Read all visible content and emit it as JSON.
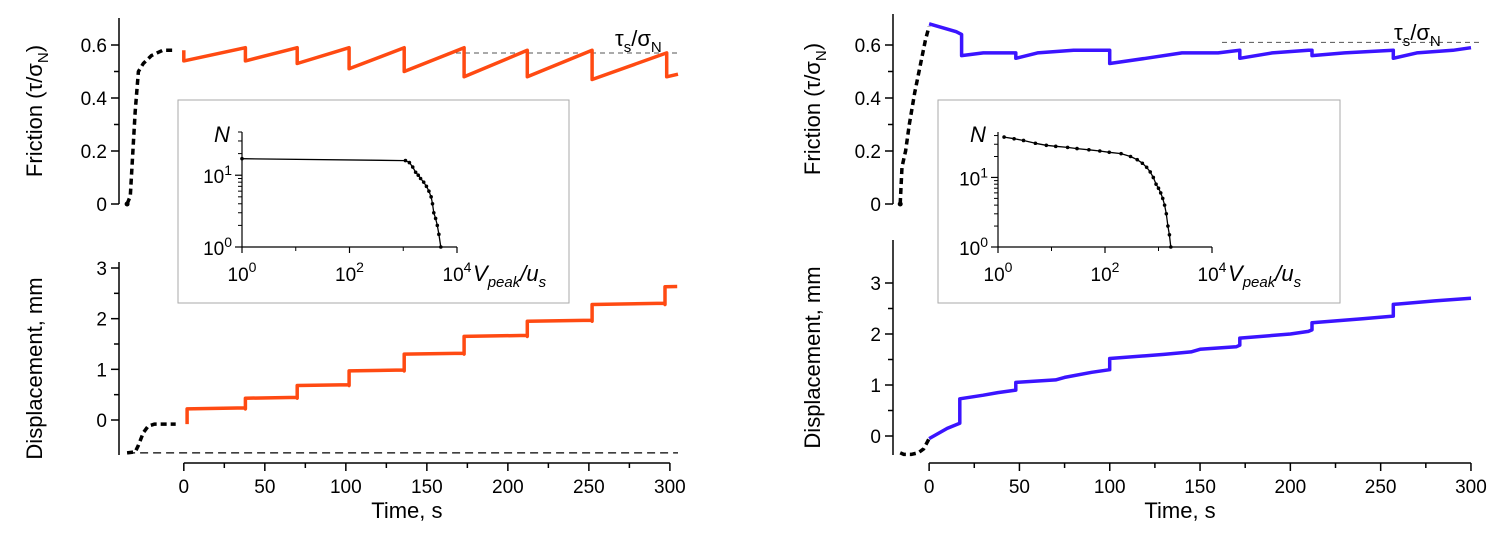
{
  "colors": {
    "left_series": "#ff4a12",
    "right_series": "#3b14ff",
    "prep": "#000000",
    "inset_bg": "#ffffff",
    "inset_border": "#aaaaaa"
  },
  "chart_data": [
    {
      "type": "line",
      "panel": "left-top",
      "ylabel": "Friction (τ/σN)",
      "xlim": [
        -40,
        305
      ],
      "ylim": [
        0,
        0.7
      ],
      "yticks": [
        "0",
        "0.2",
        "0.4",
        "0.6"
      ],
      "annotation": "τs/σN",
      "threshold": 0.57,
      "prep_series": {
        "x": [
          -35,
          -33,
          -30,
          -28,
          -25,
          -20,
          -13,
          -8,
          -5
        ],
        "y": [
          0,
          0.03,
          0.35,
          0.5,
          0.53,
          0.56,
          0.58,
          0.58,
          0.58
        ]
      },
      "stick_slip": {
        "slip_times": [
          0,
          38,
          70,
          102,
          136,
          173,
          212,
          252,
          298
        ],
        "peaks": [
          0.58,
          0.59,
          0.59,
          0.59,
          0.59,
          0.59,
          0.58,
          0.58,
          0.57
        ],
        "drops": [
          0.54,
          0.54,
          0.53,
          0.51,
          0.5,
          0.48,
          0.48,
          0.47,
          0.48,
          0.49
        ],
        "end": 305
      }
    },
    {
      "type": "line",
      "panel": "left-bottom",
      "xlabel": "Time, s",
      "ylabel": "Displacement, mm",
      "xlim": [
        -40,
        305
      ],
      "ylim": [
        -0.65,
        3
      ],
      "xticks": [
        "0",
        "50",
        "100",
        "150",
        "200",
        "250",
        "300"
      ],
      "yticks": [
        "0",
        "1",
        "2",
        "3"
      ],
      "prep_series": {
        "x": [
          -35,
          -30,
          -28,
          -25,
          -22,
          -18,
          -10,
          -5
        ],
        "y": [
          -0.65,
          -0.63,
          -0.5,
          -0.25,
          -0.12,
          -0.08,
          -0.08,
          -0.08
        ]
      },
      "baseline": {
        "x": [
          -35,
          305
        ],
        "y": [
          -0.65,
          -0.65
        ]
      },
      "steps": {
        "slip_times": [
          2,
          38,
          70,
          102,
          136,
          173,
          212,
          252,
          297
        ],
        "levels": [
          -0.08,
          0.22,
          0.43,
          0.68,
          0.97,
          1.3,
          1.65,
          1.95,
          2.28,
          2.63
        ],
        "end": 305
      }
    },
    {
      "type": "line",
      "panel": "left-inset",
      "xscale": "log",
      "yscale": "log",
      "xlim": [
        1,
        10000
      ],
      "ylim": [
        1,
        40
      ],
      "xticks": [
        "10^0",
        "10^2",
        "10^4"
      ],
      "yticks": [
        "10^0",
        "10^1"
      ],
      "ylabel": "N",
      "xlabel": "Vpeak/us",
      "x": [
        1,
        1100,
        1300,
        1500,
        1700,
        1900,
        2100,
        2400,
        2700,
        3000,
        3300,
        3500,
        3700,
        4000,
        4300,
        4600,
        5000
      ],
      "y": [
        17,
        16,
        15,
        13,
        11,
        10,
        9,
        8,
        7,
        6,
        5,
        4,
        3,
        2.5,
        2,
        1.5,
        1
      ]
    },
    {
      "type": "line",
      "panel": "right-top",
      "ylabel": "Friction (τ/σN)",
      "xlim": [
        -20,
        305
      ],
      "ylim": [
        0,
        0.7
      ],
      "yticks": [
        "0",
        "0.2",
        "0.4",
        "0.6"
      ],
      "annotation": "τs/σN",
      "threshold": 0.61,
      "prep_series": {
        "x": [
          -16,
          -15,
          -13,
          -11,
          -8,
          -5,
          -2,
          0
        ],
        "y": [
          0,
          0.14,
          0.2,
          0.3,
          0.42,
          0.52,
          0.62,
          0.67
        ]
      },
      "x": [
        0,
        15,
        18,
        18,
        30,
        48,
        48,
        60,
        80,
        90,
        100,
        100,
        120,
        140,
        160,
        172,
        172,
        190,
        210,
        212,
        212,
        230,
        257,
        257,
        270,
        290,
        300
      ],
      "y": [
        0.68,
        0.65,
        0.64,
        0.56,
        0.57,
        0.57,
        0.55,
        0.57,
        0.58,
        0.58,
        0.58,
        0.53,
        0.55,
        0.57,
        0.57,
        0.58,
        0.55,
        0.57,
        0.58,
        0.58,
        0.56,
        0.57,
        0.58,
        0.55,
        0.57,
        0.58,
        0.59
      ]
    },
    {
      "type": "line",
      "panel": "right-bottom",
      "xlabel": "Time, s",
      "ylabel": "Displacement, mm",
      "xlim": [
        -20,
        305
      ],
      "ylim": [
        -0.35,
        3
      ],
      "xticks": [
        "0",
        "50",
        "100",
        "150",
        "200",
        "250",
        "300"
      ],
      "yticks": [
        "0",
        "1",
        "2",
        "3"
      ],
      "prep_series": {
        "x": [
          -16,
          -14,
          -10,
          -6,
          -3,
          0
        ],
        "y": [
          -0.33,
          -0.36,
          -0.36,
          -0.33,
          -0.25,
          -0.05
        ]
      },
      "x": [
        0,
        10,
        17,
        17,
        30,
        38,
        48,
        48,
        70,
        75,
        90,
        100,
        100,
        130,
        145,
        150,
        170,
        172,
        172,
        200,
        210,
        212,
        212,
        240,
        257,
        257,
        280,
        300
      ],
      "y": [
        -0.05,
        0.15,
        0.25,
        0.73,
        0.8,
        0.85,
        0.9,
        1.05,
        1.1,
        1.15,
        1.25,
        1.3,
        1.52,
        1.6,
        1.65,
        1.7,
        1.75,
        1.78,
        1.92,
        2.0,
        2.05,
        2.08,
        2.22,
        2.3,
        2.35,
        2.58,
        2.65,
        2.7
      ]
    },
    {
      "type": "line",
      "panel": "right-inset",
      "xscale": "log",
      "yscale": "log",
      "xlim": [
        1,
        10000
      ],
      "ylim": [
        1,
        45
      ],
      "xticks": [
        "10^0",
        "10^2",
        "10^4"
      ],
      "yticks": [
        "10^0",
        "10^1"
      ],
      "ylabel": "N",
      "xlabel": "Vpeak/us",
      "x": [
        1.3,
        2,
        3,
        5,
        8,
        12,
        20,
        30,
        50,
        80,
        120,
        200,
        300,
        400,
        500,
        600,
        700,
        800,
        900,
        1000,
        1100,
        1200,
        1300,
        1400,
        1500,
        1600,
        1700
      ],
      "y": [
        38,
        36,
        34,
        31,
        29,
        28,
        27,
        26,
        25,
        24,
        23,
        22,
        20,
        18,
        16,
        14,
        12,
        10,
        8,
        7,
        6,
        5,
        4,
        3,
        2,
        1.5,
        1
      ]
    }
  ]
}
